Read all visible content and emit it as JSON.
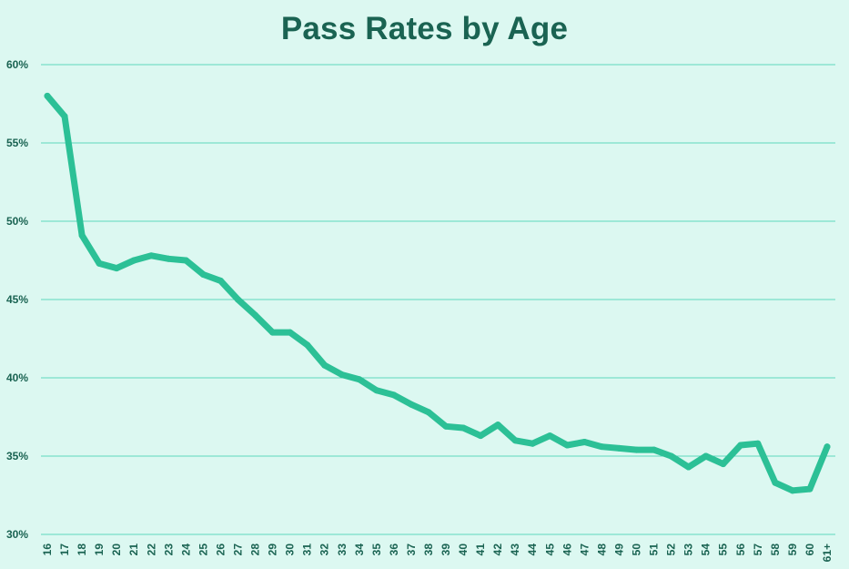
{
  "chart_data": {
    "type": "line",
    "title": "Pass Rates by Age",
    "xlabel": "",
    "ylabel": "",
    "categories": [
      "16",
      "17",
      "18",
      "19",
      "20",
      "21",
      "22",
      "23",
      "24",
      "25",
      "26",
      "27",
      "28",
      "29",
      "30",
      "31",
      "32",
      "33",
      "34",
      "35",
      "36",
      "37",
      "38",
      "39",
      "40",
      "41",
      "42",
      "43",
      "44",
      "45",
      "46",
      "47",
      "48",
      "49",
      "50",
      "51",
      "52",
      "53",
      "54",
      "55",
      "56",
      "57",
      "58",
      "59",
      "60",
      "61+"
    ],
    "values": [
      58.0,
      56.7,
      49.1,
      47.3,
      47.0,
      47.5,
      47.8,
      47.6,
      47.5,
      46.6,
      46.2,
      45.0,
      44.0,
      42.9,
      42.9,
      42.1,
      40.8,
      40.2,
      39.9,
      39.2,
      38.9,
      38.3,
      37.8,
      36.9,
      36.8,
      36.3,
      37.0,
      36.0,
      35.8,
      36.3,
      35.7,
      35.9,
      35.6,
      35.5,
      35.4,
      35.4,
      35.0,
      34.3,
      35.0,
      34.5,
      35.7,
      35.8,
      33.3,
      32.8,
      32.9,
      35.6
    ],
    "ylim": [
      30,
      60
    ],
    "yticks": [
      30,
      35,
      40,
      45,
      50,
      55,
      60
    ],
    "ytick_labels": [
      "30%",
      "35%",
      "40%",
      "45%",
      "50%",
      "55%",
      "60%"
    ],
    "grid": true,
    "line_color": "#2cc096",
    "grid_color": "#5ed9bd",
    "title_color": "#1a6352",
    "background_color": "#dcf8f1"
  }
}
